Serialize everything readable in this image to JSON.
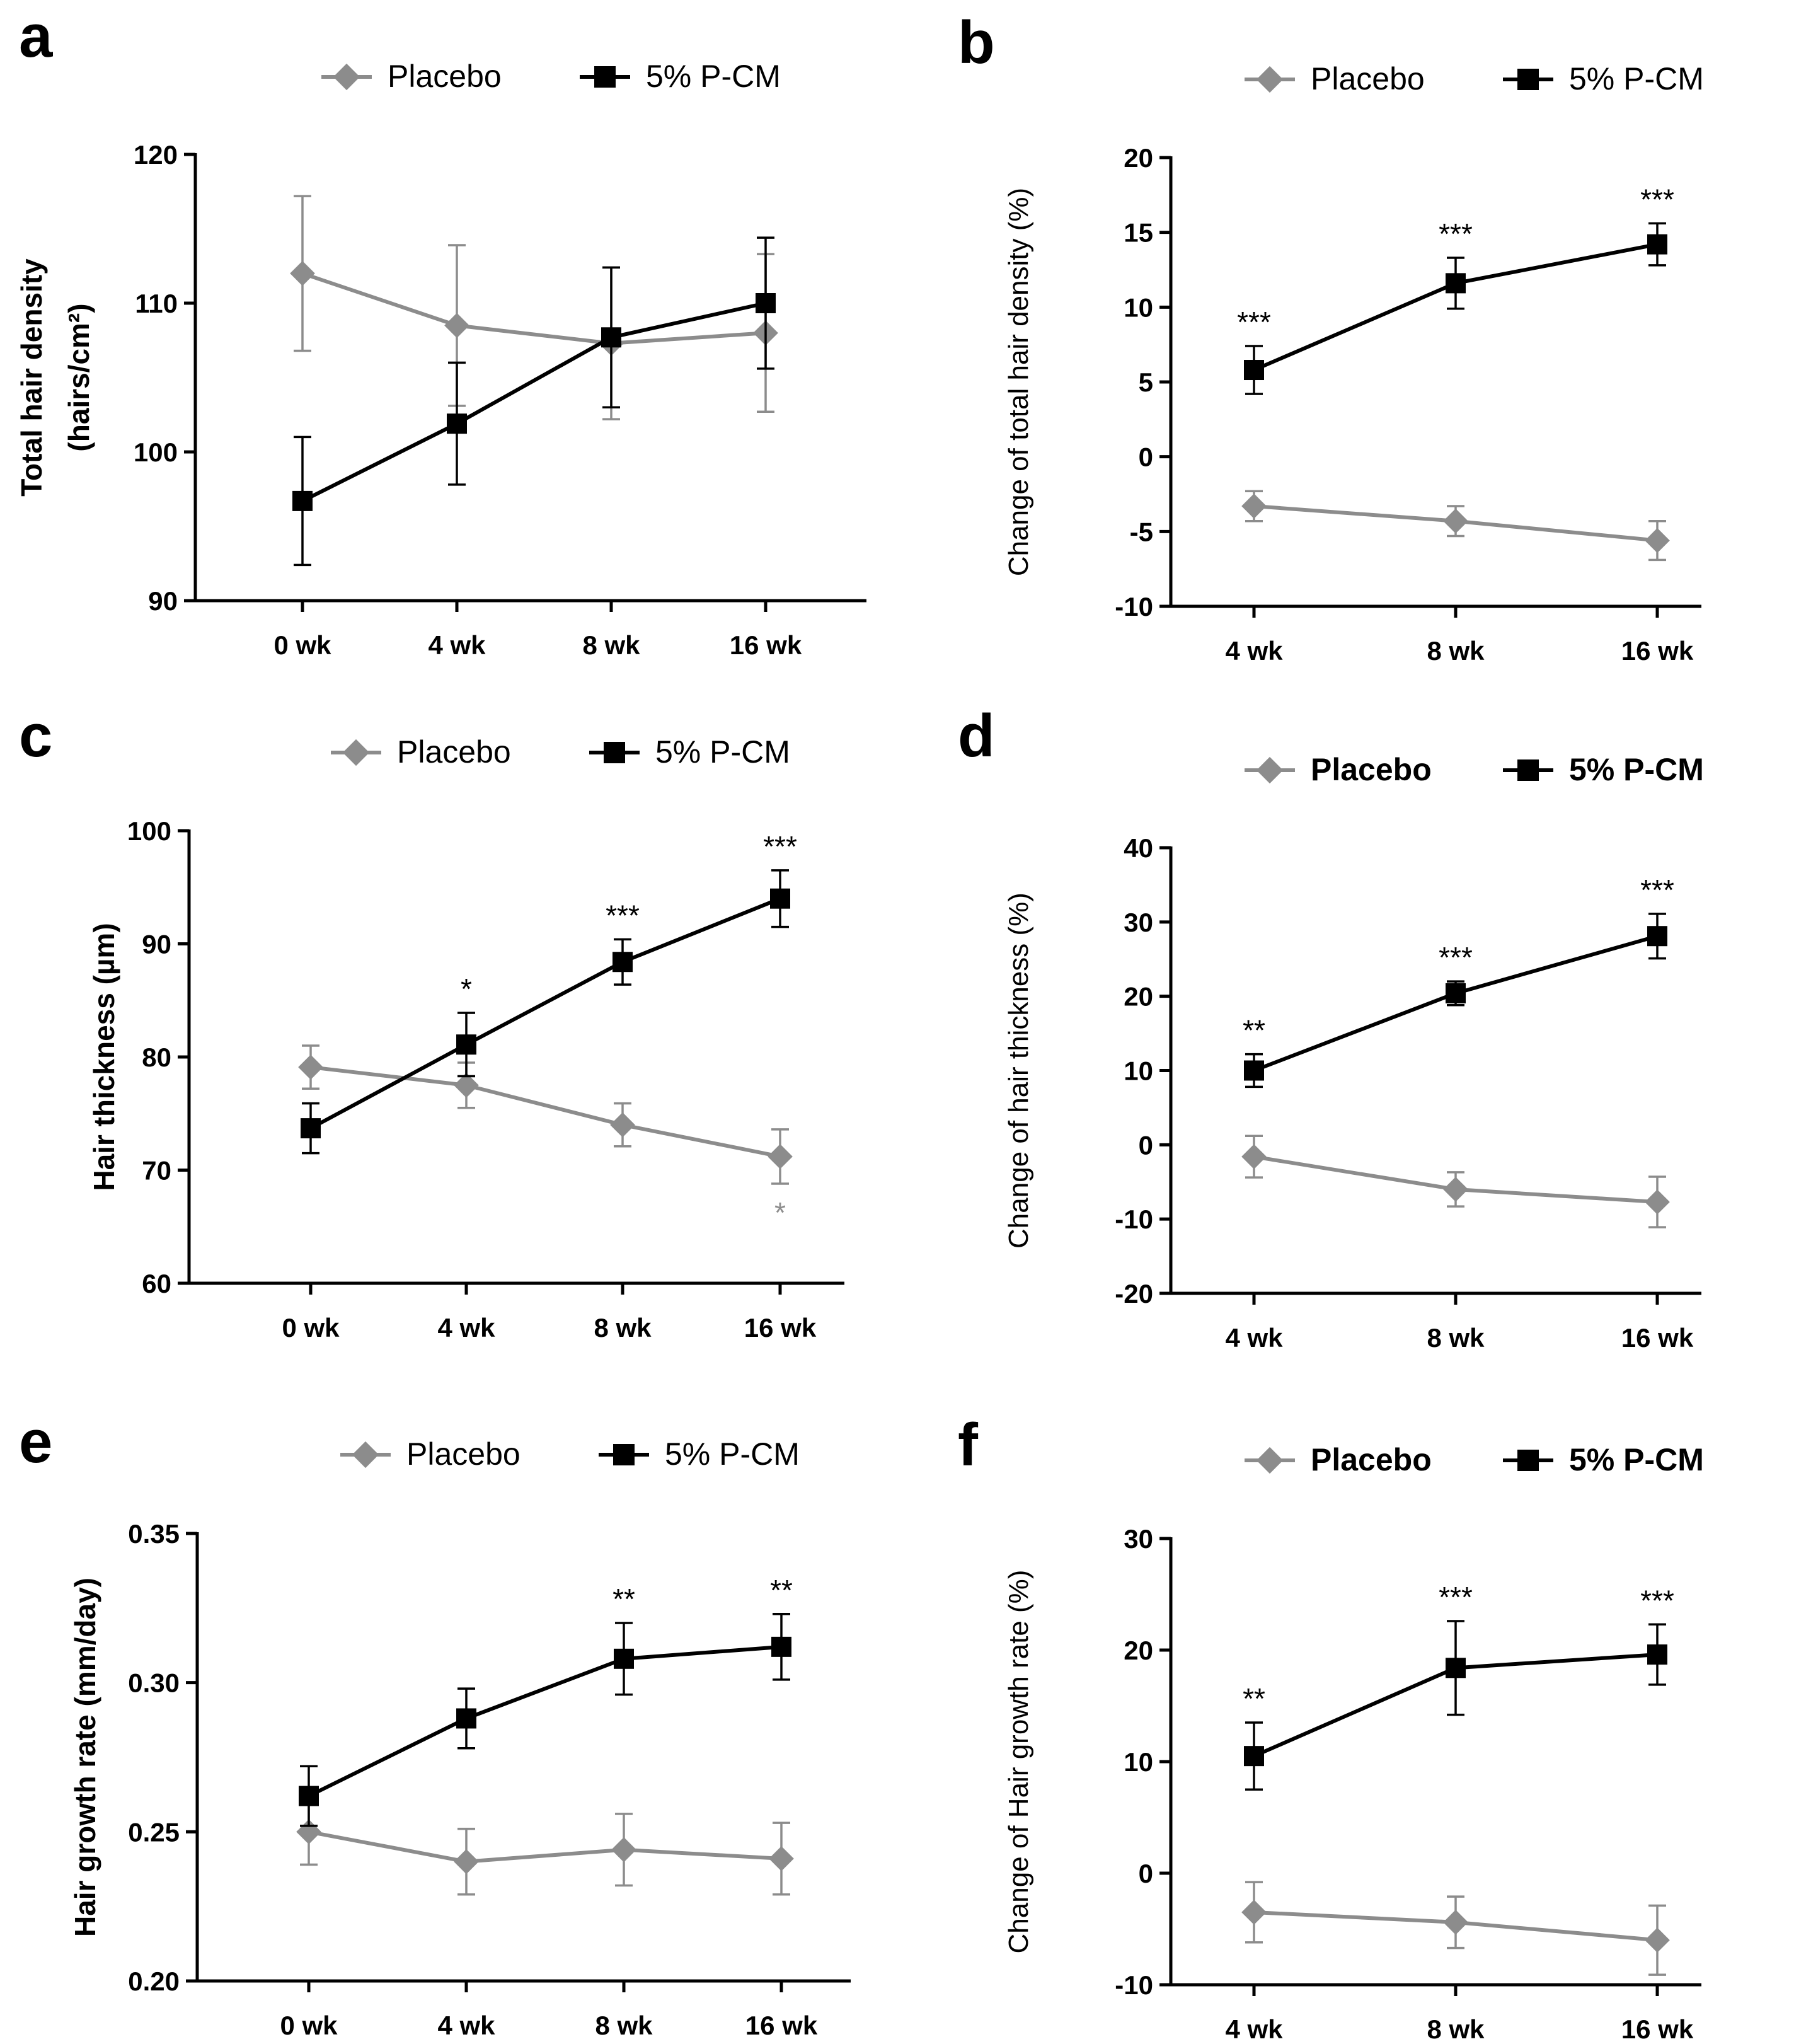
{
  "chart_data": [
    {
      "panel": "a",
      "type": "line",
      "legend_bold": false,
      "ylabel_bold": true,
      "ylabel": [
        "Total hair density",
        "(hairs/cm²)"
      ],
      "categories": [
        "0 wk",
        "4 wk",
        "8 wk",
        "16 wk"
      ],
      "ylim": [
        90,
        120
      ],
      "yticks": [
        "90",
        "100",
        "110",
        "120"
      ],
      "series": [
        {
          "name": "Placebo",
          "color": "#8c8c8c",
          "marker": "diamond",
          "values": [
            112,
            108.5,
            107.3,
            108
          ],
          "errors": [
            5.2,
            5.4,
            5.1,
            5.3
          ],
          "sig": [
            "",
            "",
            "",
            ""
          ]
        },
        {
          "name": "5% P-CM",
          "color": "#000000",
          "marker": "square",
          "values": [
            96.7,
            101.9,
            107.7,
            110
          ],
          "errors": [
            4.3,
            4.1,
            4.7,
            4.4
          ],
          "sig": [
            "",
            "",
            "",
            ""
          ]
        }
      ]
    },
    {
      "panel": "b",
      "type": "line",
      "legend_bold": false,
      "ylabel_bold": false,
      "ylabel": [
        "Change of total hair density  (%)"
      ],
      "categories": [
        "4 wk",
        "8 wk",
        "16 wk"
      ],
      "ylim": [
        -10,
        20
      ],
      "yticks": [
        "-10",
        "-5",
        "0",
        "5",
        "10",
        "15",
        "20"
      ],
      "series": [
        {
          "name": "Placebo",
          "color": "#8c8c8c",
          "marker": "diamond",
          "values": [
            -3.3,
            -4.3,
            -5.6
          ],
          "errors": [
            1.0,
            1.0,
            1.3
          ],
          "sig": [
            "",
            "",
            ""
          ]
        },
        {
          "name": "5% P-CM",
          "color": "#000000",
          "marker": "square",
          "values": [
            5.8,
            11.6,
            14.2
          ],
          "errors": [
            1.6,
            1.7,
            1.4
          ],
          "sig": [
            "***",
            "***",
            "***"
          ]
        }
      ]
    },
    {
      "panel": "c",
      "type": "line",
      "legend_bold": false,
      "ylabel_bold": true,
      "ylabel": [
        "Hair thickness (µm)"
      ],
      "categories": [
        "0 wk",
        "4 wk",
        "8 wk",
        "16 wk"
      ],
      "ylim": [
        60,
        100
      ],
      "yticks": [
        "60",
        "70",
        "80",
        "90",
        "100"
      ],
      "series": [
        {
          "name": "Placebo",
          "color": "#8c8c8c",
          "marker": "diamond",
          "values": [
            79.1,
            77.5,
            74.0,
            71.2
          ],
          "errors": [
            1.9,
            2.0,
            1.9,
            2.4
          ],
          "sig": [
            "",
            "",
            "",
            "*"
          ]
        },
        {
          "name": "5% P-CM",
          "color": "#000000",
          "marker": "square",
          "values": [
            73.7,
            81.1,
            88.4,
            94.0
          ],
          "errors": [
            2.2,
            2.8,
            2.0,
            2.5
          ],
          "sig": [
            "",
            "*",
            "***",
            "***"
          ]
        }
      ]
    },
    {
      "panel": "d",
      "type": "line",
      "legend_bold": true,
      "ylabel_bold": false,
      "ylabel": [
        "Change of hair thickness  (%)"
      ],
      "categories": [
        "4 wk",
        "8 wk",
        "16 wk"
      ],
      "ylim": [
        -20,
        40
      ],
      "yticks": [
        "-20",
        "-10",
        "0",
        "10",
        "20",
        "30",
        "40"
      ],
      "series": [
        {
          "name": "Placebo",
          "color": "#8c8c8c",
          "marker": "diamond",
          "values": [
            -1.6,
            -6.0,
            -7.7
          ],
          "errors": [
            2.8,
            2.3,
            3.4
          ],
          "sig": [
            "",
            "",
            ""
          ]
        },
        {
          "name": "5% P-CM",
          "color": "#000000",
          "marker": "square",
          "values": [
            10.0,
            20.4,
            28.1
          ],
          "errors": [
            2.2,
            1.6,
            3.0
          ],
          "sig": [
            "**",
            "***",
            "***"
          ]
        }
      ]
    },
    {
      "panel": "e",
      "type": "line",
      "legend_bold": false,
      "ylabel_bold": true,
      "ylabel": [
        "Hair growth rate (mm/day)"
      ],
      "categories": [
        "0 wk",
        "4 wk",
        "8 wk",
        "16 wk"
      ],
      "ylim": [
        0.2,
        0.35
      ],
      "yticks": [
        "0.20",
        "0.25",
        "0.30",
        "0.35"
      ],
      "series": [
        {
          "name": "Placebo",
          "color": "#8c8c8c",
          "marker": "diamond",
          "values": [
            0.25,
            0.24,
            0.244,
            0.241
          ],
          "errors": [
            0.011,
            0.011,
            0.012,
            0.012
          ],
          "sig": [
            "",
            "",
            "",
            ""
          ]
        },
        {
          "name": "5% P-CM",
          "color": "#000000",
          "marker": "square",
          "values": [
            0.262,
            0.288,
            0.308,
            0.312
          ],
          "errors": [
            0.01,
            0.01,
            0.012,
            0.011
          ],
          "sig": [
            "",
            "",
            "**",
            "**"
          ]
        }
      ]
    },
    {
      "panel": "f",
      "type": "line",
      "legend_bold": true,
      "ylabel_bold": false,
      "ylabel": [
        "Change of Hair growth rate  (%)"
      ],
      "categories": [
        "4 wk",
        "8 wk",
        "16 wk"
      ],
      "ylim": [
        -10,
        30
      ],
      "yticks": [
        "-10",
        "0",
        "10",
        "20",
        "30"
      ],
      "series": [
        {
          "name": "Placebo",
          "color": "#8c8c8c",
          "marker": "diamond",
          "values": [
            -3.5,
            -4.4,
            -6.0
          ],
          "errors": [
            2.7,
            2.3,
            3.1
          ],
          "sig": [
            "",
            "",
            ""
          ]
        },
        {
          "name": "5% P-CM",
          "color": "#000000",
          "marker": "square",
          "values": [
            10.5,
            18.4,
            19.6
          ],
          "errors": [
            3.0,
            4.2,
            2.7
          ],
          "sig": [
            "**",
            "***",
            "***"
          ]
        }
      ]
    }
  ]
}
